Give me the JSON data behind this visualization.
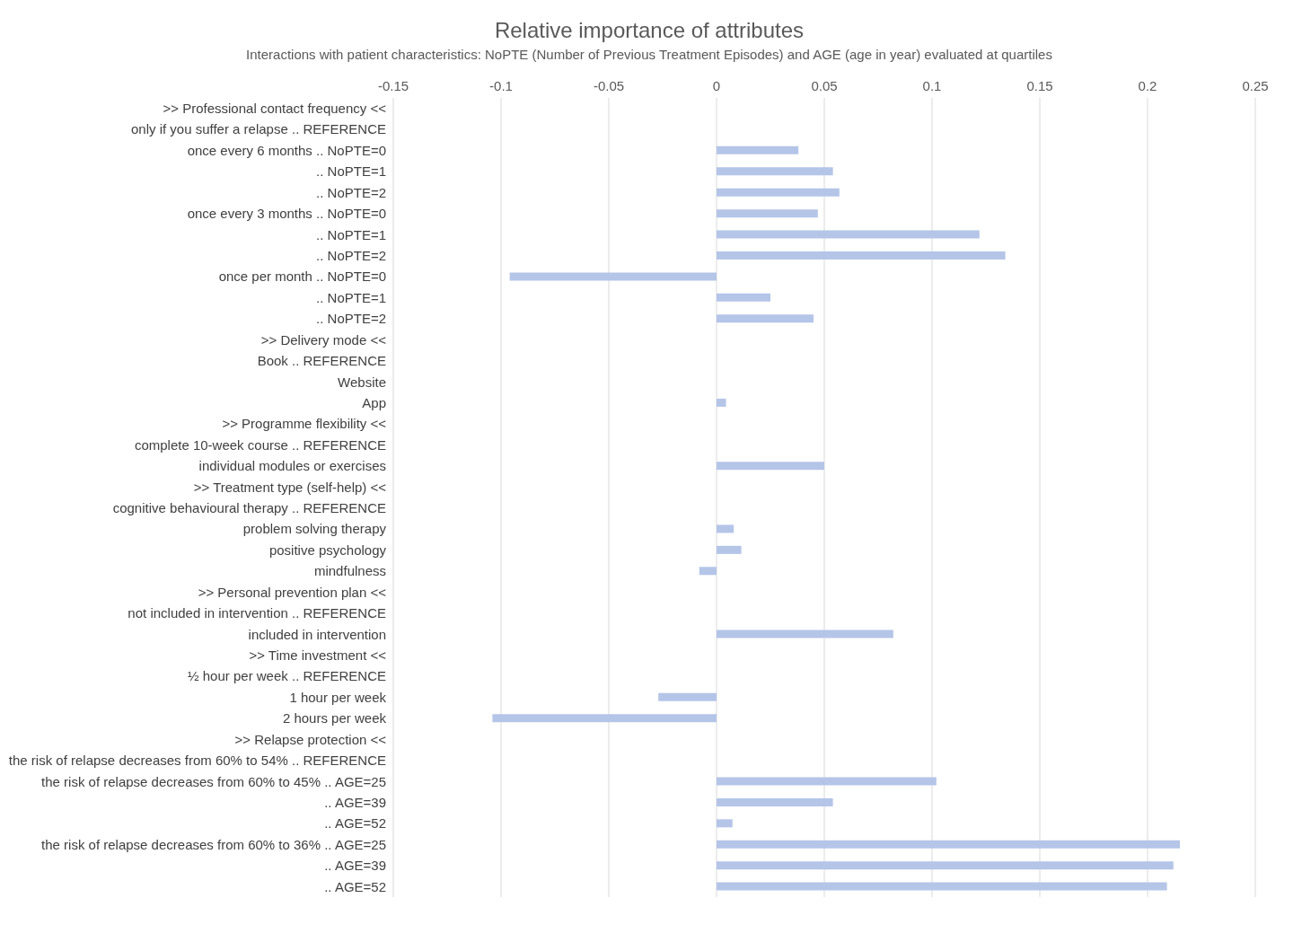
{
  "chart_data": {
    "type": "bar",
    "orientation": "horizontal",
    "title": "Relative importance of attributes",
    "subtitle": "Interactions with patient characteristics: NoPTE (Number of Previous Treatment Episodes) and AGE (age in year) evaluated at quartiles",
    "categories": [
      ">> Professional contact frequency <<",
      "only if you suffer a relapse .. REFERENCE",
      "once every 6 months .. NoPTE=0",
      ".. NoPTE=1",
      ".. NoPTE=2",
      "once every 3 months .. NoPTE=0",
      ".. NoPTE=1",
      ".. NoPTE=2",
      "once per month .. NoPTE=0",
      ".. NoPTE=1",
      ".. NoPTE=2",
      ">> Delivery mode <<",
      "Book .. REFERENCE",
      "Website",
      "App",
      ">> Programme flexibility <<",
      "complete 10-week course .. REFERENCE",
      "individual modules or exercises",
      ">> Treatment type (self-help) <<",
      "cognitive behavioural therapy .. REFERENCE",
      "problem solving therapy",
      "positive psychology",
      "mindfulness",
      ">> Personal prevention plan <<",
      "not included in intervention .. REFERENCE",
      "included in intervention",
      ">> Time investment <<",
      "½ hour per week .. REFERENCE",
      "1 hour per week",
      "2 hours per week",
      ">> Relapse protection <<",
      "the risk of relapse decreases from 60% to 54% .. REFERENCE",
      "the risk of relapse decreases from 60% to 45% .. AGE=25",
      ".. AGE=39",
      ".. AGE=52",
      "the risk of relapse decreases from 60% to 36% .. AGE=25",
      ".. AGE=39",
      ".. AGE=52"
    ],
    "values": [
      null,
      null,
      0.038,
      0.054,
      0.057,
      0.047,
      0.122,
      0.134,
      -0.096,
      0.025,
      0.045,
      null,
      null,
      null,
      0.0044,
      null,
      null,
      0.05,
      null,
      null,
      0.008,
      0.0115,
      -0.008,
      null,
      null,
      0.082,
      null,
      null,
      -0.027,
      -0.104,
      null,
      null,
      0.102,
      0.054,
      0.0074,
      0.215,
      0.212,
      0.209
    ],
    "color": "#b4c5e8",
    "xlim": [
      -0.15,
      0.25
    ],
    "xticks": [
      -0.15,
      -0.1,
      -0.05,
      0,
      0.05,
      0.1,
      0.15,
      0.2,
      0.25
    ],
    "grid": "x"
  }
}
